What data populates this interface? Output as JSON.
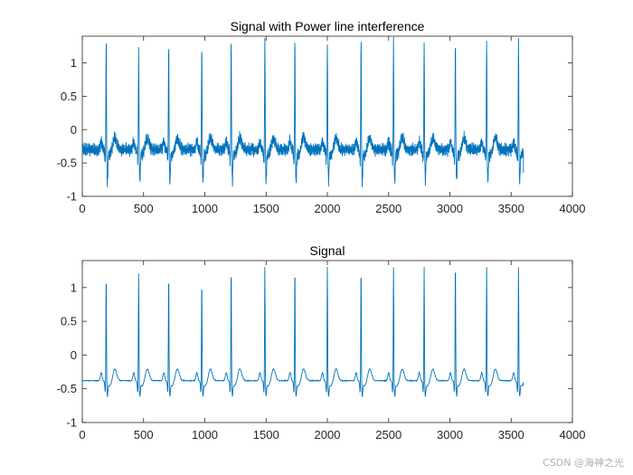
{
  "watermark": "CSDN @海神之光",
  "colors": {
    "line": "#0072BD",
    "axes": "#262626",
    "background": "#ffffff"
  },
  "chart_data": [
    {
      "type": "line",
      "title": "Signal with Power line interference",
      "xlim": [
        0,
        4000
      ],
      "ylim": [
        -1,
        1.4
      ],
      "xticks": [
        0,
        500,
        1000,
        1500,
        2000,
        2500,
        3000,
        3500,
        4000
      ],
      "xtick_labels": [
        "0",
        "500",
        "1000",
        "1500",
        "2000",
        "2500",
        "3000",
        "3500",
        "4000"
      ],
      "yticks": [
        -1,
        -0.5,
        0,
        0.5,
        1
      ],
      "ytick_labels": [
        "-1",
        "-0.5",
        "0",
        "0.5",
        "1"
      ],
      "grid": false,
      "noise_amplitude": 0.08,
      "series": [
        {
          "x_start": 0,
          "x_end": 3600,
          "beats_x": [
            195,
            460,
            705,
            975,
            1215,
            1490,
            1735,
            2000,
            2275,
            2540,
            2790,
            3045,
            3300,
            3560
          ],
          "peak_y": [
            1.37,
            1.2,
            1.35,
            1.3,
            1.38,
            1.38,
            1.38,
            1.36,
            1.38,
            1.38,
            1.38,
            1.38,
            1.38,
            1.38
          ],
          "trough_y": -0.72,
          "baseline_y": -0.3,
          "end_y": -0.65
        }
      ]
    },
    {
      "type": "line",
      "title": "Signal",
      "xlim": [
        0,
        4000
      ],
      "ylim": [
        -1,
        1.4
      ],
      "xticks": [
        0,
        500,
        1000,
        1500,
        2000,
        2500,
        3000,
        3500,
        4000
      ],
      "xtick_labels": [
        "0",
        "500",
        "1000",
        "1500",
        "2000",
        "2500",
        "3000",
        "3500",
        "4000"
      ],
      "yticks": [
        -1,
        -0.5,
        0,
        0.5,
        1
      ],
      "ytick_labels": [
        "-1",
        "-0.5",
        "0",
        "0.5",
        "1"
      ],
      "grid": false,
      "noise_amplitude": 0.01,
      "series": [
        {
          "x_start": 0,
          "x_end": 3600,
          "beats_x": [
            195,
            460,
            705,
            975,
            1215,
            1490,
            1735,
            2000,
            2275,
            2540,
            2790,
            3045,
            3300,
            3560
          ],
          "peak_y": [
            1.2,
            1.2,
            1.2,
            1.1,
            1.3,
            1.3,
            1.3,
            1.3,
            1.3,
            1.3,
            1.3,
            1.38,
            1.3,
            1.3
          ],
          "trough_y": -0.55,
          "baseline_y": -0.38,
          "end_y": -0.45
        }
      ]
    }
  ]
}
